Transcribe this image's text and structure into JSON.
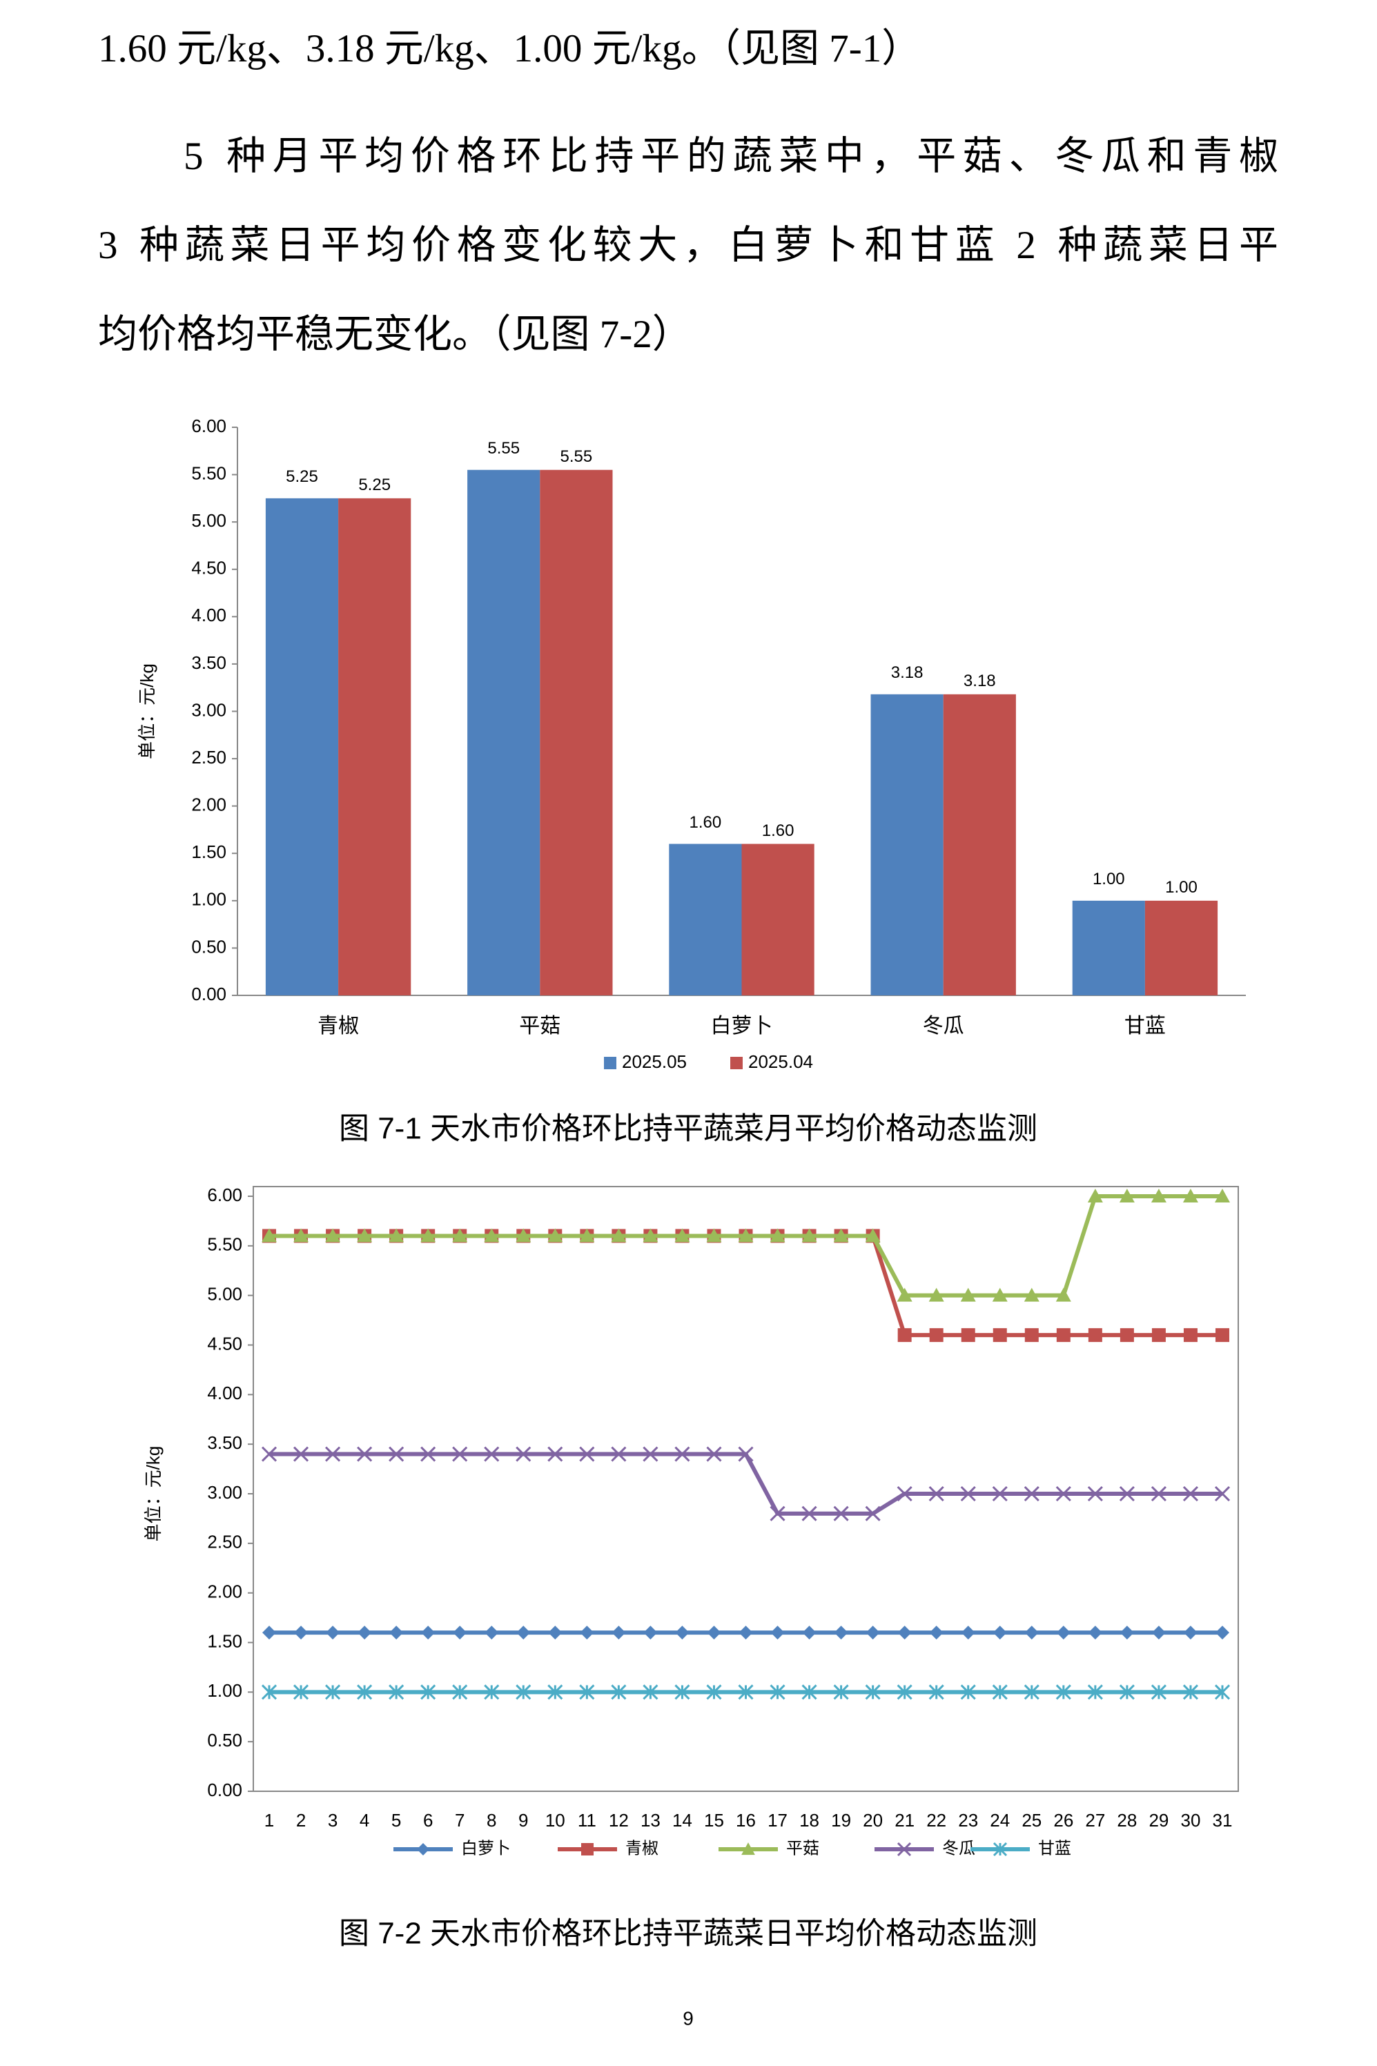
{
  "paragraphs": [
    [
      "1.60 元/kg、3.18 元/kg、1.00 元/kg。（见图 7-1）"
    ],
    [
      "5 种月平均价格环比持平的蔬菜中，平菇、冬瓜和青椒",
      "3 种蔬菜日平均价格变化较大，白萝卜和甘蓝 2 种蔬菜日平",
      "均价格均平稳无变化。（见图 7-2）"
    ]
  ],
  "chart_data": [
    {
      "type": "bar",
      "title": "图 7-1  天水市价格环比持平蔬菜月平均价格动态监测",
      "y_label": "单位：元/kg",
      "categories": [
        "青椒",
        "平菇",
        "白萝卜",
        "冬瓜",
        "甘蓝"
      ],
      "series": [
        {
          "name": "2025.05",
          "color": "#4f81bd",
          "values": [
            5.25,
            5.55,
            1.6,
            3.18,
            1.0
          ],
          "value_labels": [
            "5.25",
            "5.55",
            "1.60",
            "3.18",
            "1.00"
          ]
        },
        {
          "name": "2025.04",
          "color": "#c0504d",
          "values": [
            5.25,
            5.55,
            1.6,
            3.18,
            1.0
          ],
          "value_labels": [
            "5.25",
            "5.55",
            "1.60",
            "3.18",
            "1.00"
          ]
        }
      ],
      "ylim": [
        0,
        6
      ],
      "yticks": [
        {
          "value": 0,
          "label": "0.00"
        },
        {
          "value": 0.5,
          "label": "0.50"
        },
        {
          "value": 1,
          "label": "1.00"
        },
        {
          "value": 1.5,
          "label": "1.50"
        },
        {
          "value": 2,
          "label": "2.00"
        },
        {
          "value": 2.5,
          "label": "2.50"
        },
        {
          "value": 3,
          "label": "3.00"
        },
        {
          "value": 3.5,
          "label": "3.50"
        },
        {
          "value": 4,
          "label": "4.00"
        },
        {
          "value": 4.5,
          "label": "4.50"
        },
        {
          "value": 5,
          "label": "5.00"
        },
        {
          "value": 5.5,
          "label": "5.50"
        },
        {
          "value": 6,
          "label": "6.00"
        }
      ],
      "legend": "bottom"
    },
    {
      "type": "line",
      "title": "图 7-2  天水市价格环比持平蔬菜日平均价格动态监测",
      "y_label": "单位：元/kg",
      "categories": [
        "1",
        "2",
        "3",
        "4",
        "5",
        "6",
        "7",
        "8",
        "9",
        "10",
        "11",
        "12",
        "13",
        "14",
        "15",
        "16",
        "17",
        "18",
        "19",
        "20",
        "21",
        "22",
        "23",
        "24",
        "25",
        "26",
        "27",
        "28",
        "29",
        "30",
        "31"
      ],
      "series": [
        {
          "name": "白萝卜",
          "color": "#4f81bd",
          "marker": "diamond",
          "values": [
            1.6,
            1.6,
            1.6,
            1.6,
            1.6,
            1.6,
            1.6,
            1.6,
            1.6,
            1.6,
            1.6,
            1.6,
            1.6,
            1.6,
            1.6,
            1.6,
            1.6,
            1.6,
            1.6,
            1.6,
            1.6,
            1.6,
            1.6,
            1.6,
            1.6,
            1.6,
            1.6,
            1.6,
            1.6,
            1.6,
            1.6
          ]
        },
        {
          "name": "青椒",
          "color": "#c0504d",
          "marker": "square",
          "values": [
            5.6,
            5.6,
            5.6,
            5.6,
            5.6,
            5.6,
            5.6,
            5.6,
            5.6,
            5.6,
            5.6,
            5.6,
            5.6,
            5.6,
            5.6,
            5.6,
            5.6,
            5.6,
            5.6,
            5.6,
            4.6,
            4.6,
            4.6,
            4.6,
            4.6,
            4.6,
            4.6,
            4.6,
            4.6,
            4.6,
            4.6
          ]
        },
        {
          "name": "平菇",
          "color": "#9bbb59",
          "marker": "triangle",
          "values": [
            5.6,
            5.6,
            5.6,
            5.6,
            5.6,
            5.6,
            5.6,
            5.6,
            5.6,
            5.6,
            5.6,
            5.6,
            5.6,
            5.6,
            5.6,
            5.6,
            5.6,
            5.6,
            5.6,
            5.6,
            5.0,
            5.0,
            5.0,
            5.0,
            5.0,
            5.0,
            6.0,
            6.0,
            6.0,
            6.0,
            6.0
          ]
        },
        {
          "name": "冬瓜",
          "color": "#8064a2",
          "marker": "x",
          "values": [
            3.4,
            3.4,
            3.4,
            3.4,
            3.4,
            3.4,
            3.4,
            3.4,
            3.4,
            3.4,
            3.4,
            3.4,
            3.4,
            3.4,
            3.4,
            3.4,
            2.8,
            2.8,
            2.8,
            2.8,
            3.0,
            3.0,
            3.0,
            3.0,
            3.0,
            3.0,
            3.0,
            3.0,
            3.0,
            3.0,
            3.0
          ]
        },
        {
          "name": "甘蓝",
          "color": "#4bacc6",
          "marker": "asterisk",
          "values": [
            1,
            1,
            1,
            1,
            1,
            1,
            1,
            1,
            1,
            1,
            1,
            1,
            1,
            1,
            1,
            1,
            1,
            1,
            1,
            1,
            1,
            1,
            1,
            1,
            1,
            1,
            1,
            1,
            1,
            1,
            1
          ]
        }
      ],
      "ylim": [
        0,
        6
      ],
      "yticks": [
        {
          "value": 0,
          "label": "0.00"
        },
        {
          "value": 0.5,
          "label": "0.50"
        },
        {
          "value": 1,
          "label": "1.00"
        },
        {
          "value": 1.5,
          "label": "1.50"
        },
        {
          "value": 2,
          "label": "2.00"
        },
        {
          "value": 2.5,
          "label": "2.50"
        },
        {
          "value": 3,
          "label": "3.00"
        },
        {
          "value": 3.5,
          "label": "3.50"
        },
        {
          "value": 4,
          "label": "4.00"
        },
        {
          "value": 4.5,
          "label": "4.50"
        },
        {
          "value": 5,
          "label": "5.00"
        },
        {
          "value": 5.5,
          "label": "5.50"
        },
        {
          "value": 6,
          "label": "6.00"
        }
      ],
      "legend": "bottom"
    }
  ],
  "page_number": "9"
}
